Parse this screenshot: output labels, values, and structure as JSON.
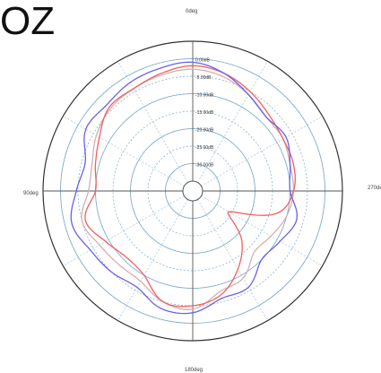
{
  "title": "OZ",
  "chart_data": {
    "type": "line",
    "subtype": "polar",
    "angle_labels": [
      {
        "angle": 0,
        "label": "0deg"
      },
      {
        "angle": 90,
        "label": "90deg"
      },
      {
        "angle": 180,
        "label": "180deg"
      },
      {
        "angle": 270,
        "label": "270de"
      }
    ],
    "radial_labels": [
      "0.00dB",
      "-5.00dB",
      "-10.00dB",
      "-15.00dB",
      "-20.00dB",
      "-25.00dB",
      "-30.00dB"
    ],
    "r_range_db": [
      -35,
      5
    ],
    "grid": true,
    "bottom_left_text": "",
    "series": [
      {
        "color": "#6a5ff0",
        "angles": [
          0,
          15,
          30,
          45,
          60,
          75,
          90,
          105,
          120,
          135,
          150,
          165,
          180,
          195,
          210,
          225,
          240,
          255,
          270,
          285,
          300,
          315,
          330,
          345
        ],
        "values_db": [
          -1,
          -1.5,
          -2,
          -3,
          -2.5,
          -6,
          -4.5,
          -2,
          -4,
          -5,
          -6,
          -3,
          -3,
          -6,
          -6,
          -10,
          -9,
          -7,
          -10,
          -9,
          -7,
          -8,
          -6,
          -3
        ]
      },
      {
        "color": "#f06060",
        "angles": [
          0,
          15,
          30,
          45,
          60,
          75,
          90,
          105,
          120,
          135,
          150,
          165,
          180,
          195,
          210,
          225,
          240,
          255,
          270,
          285,
          300,
          315,
          330,
          345
        ],
        "values_db": [
          -2,
          -3,
          -4,
          -4,
          -7,
          -9,
          -10,
          -6,
          -9,
          -11,
          -10,
          -5,
          -5,
          -7,
          -12,
          -18,
          -26,
          -13,
          -9,
          -8,
          -8,
          -7,
          -5,
          -3
        ]
      },
      {
        "color": "#d4b0b0",
        "angles": [
          0,
          15,
          30,
          45,
          60,
          75,
          90,
          105,
          120,
          135,
          150,
          165,
          180,
          195,
          210,
          225,
          240,
          255,
          270,
          285,
          300,
          315,
          330,
          345
        ],
        "values_db": [
          -3,
          -3.5,
          -4,
          -4.5,
          -6,
          -8,
          -8,
          -5,
          -7,
          -8,
          -8,
          -5,
          -4,
          -8,
          -9,
          -13,
          -12,
          -10,
          -9,
          -9,
          -8,
          -8,
          -6,
          -4
        ]
      }
    ]
  }
}
